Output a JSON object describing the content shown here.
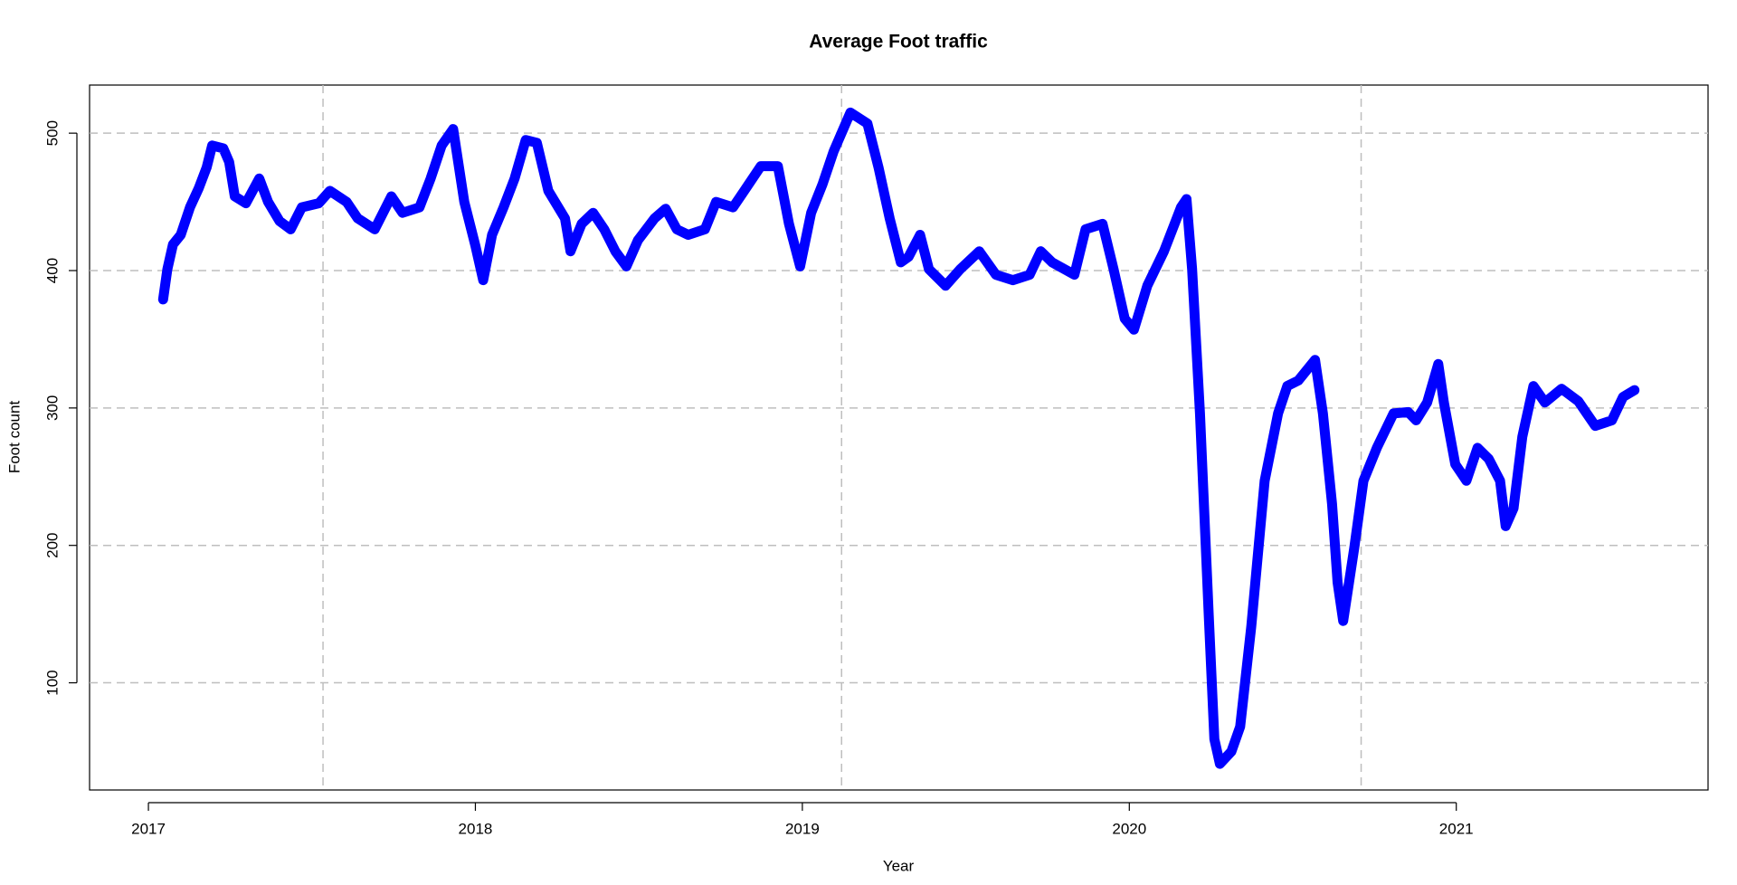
{
  "chart_data": {
    "type": "line",
    "title": "Average Foot traffic",
    "x_label": "Year",
    "y_label": "Foot count",
    "xlim": [
      2016.82,
      2021.77
    ],
    "ylim": [
      22,
      535
    ],
    "xticks": [
      2017,
      2018,
      2019,
      2020,
      2021
    ],
    "yticks": [
      100,
      200,
      300,
      400,
      500
    ],
    "x_grid_lines": [
      2017.534,
      2019.12,
      2020.709
    ],
    "grid": true,
    "series": [
      {
        "name": "Foot count",
        "color": "#0000ff",
        "x": [
          2017.045,
          2017.058,
          2017.075,
          2017.099,
          2017.127,
          2017.154,
          2017.178,
          2017.195,
          2017.229,
          2017.247,
          2017.264,
          2017.298,
          2017.339,
          2017.366,
          2017.401,
          2017.435,
          2017.469,
          2017.521,
          2017.555,
          2017.606,
          2017.64,
          2017.692,
          2017.743,
          2017.777,
          2017.829,
          2017.863,
          2017.897,
          2017.932,
          2017.966,
          2018.0,
          2018.024,
          2018.051,
          2018.086,
          2018.12,
          2018.154,
          2018.188,
          2018.223,
          2018.274,
          2018.291,
          2018.325,
          2018.36,
          2018.394,
          2018.428,
          2018.462,
          2018.497,
          2018.548,
          2018.582,
          2018.616,
          2018.651,
          2018.702,
          2018.736,
          2018.788,
          2018.822,
          2018.873,
          2018.925,
          2018.959,
          2018.993,
          2019.027,
          2019.062,
          2019.096,
          2019.147,
          2019.199,
          2019.233,
          2019.267,
          2019.301,
          2019.325,
          2019.36,
          2019.387,
          2019.438,
          2019.483,
          2019.541,
          2019.592,
          2019.644,
          2019.695,
          2019.729,
          2019.764,
          2019.832,
          2019.866,
          2019.918,
          2019.952,
          2019.986,
          2020.014,
          2020.055,
          2020.106,
          2020.158,
          2020.175,
          2020.192,
          2020.216,
          2020.243,
          2020.26,
          2020.277,
          2020.312,
          2020.339,
          2020.373,
          2020.414,
          2020.455,
          2020.483,
          2020.517,
          2020.568,
          2020.592,
          2020.62,
          2020.637,
          2020.654,
          2020.688,
          2020.716,
          2020.757,
          2020.808,
          2020.853,
          2020.877,
          2020.911,
          2020.945,
          2020.962,
          2020.997,
          2021.031,
          2021.065,
          2021.099,
          2021.134,
          2021.151,
          2021.175,
          2021.202,
          2021.236,
          2021.271,
          2021.322,
          2021.373,
          2021.425,
          2021.476,
          2021.51,
          2021.545
        ],
        "values": [
          379,
          401,
          419,
          426,
          446,
          460,
          475,
          491,
          489,
          479,
          454,
          449,
          467,
          450,
          436,
          430,
          446,
          449,
          458,
          450,
          438,
          430,
          454,
          442,
          446,
          467,
          491,
          503,
          450,
          418,
          393,
          426,
          446,
          467,
          495,
          493,
          458,
          438,
          414,
          434,
          442,
          430,
          414,
          403,
          422,
          438,
          445,
          430,
          426,
          430,
          450,
          446,
          458,
          476,
          476,
          434,
          403,
          442,
          463,
          487,
          515,
          507,
          475,
          438,
          406,
          410,
          426,
          401,
          389,
          401,
          414,
          397,
          393,
          397,
          414,
          406,
          397,
          430,
          434,
          401,
          365,
          357,
          389,
          414,
          446,
          452,
          401,
          296,
          149,
          59,
          41,
          50,
          68,
          141,
          247,
          296,
          316,
          320,
          335,
          296,
          230,
          173,
          145,
          198,
          247,
          271,
          296,
          297,
          291,
          304,
          332,
          304,
          259,
          247,
          271,
          263,
          247,
          214,
          227,
          279,
          316,
          304,
          314,
          305,
          287,
          291,
          308,
          313
        ]
      }
    ]
  }
}
